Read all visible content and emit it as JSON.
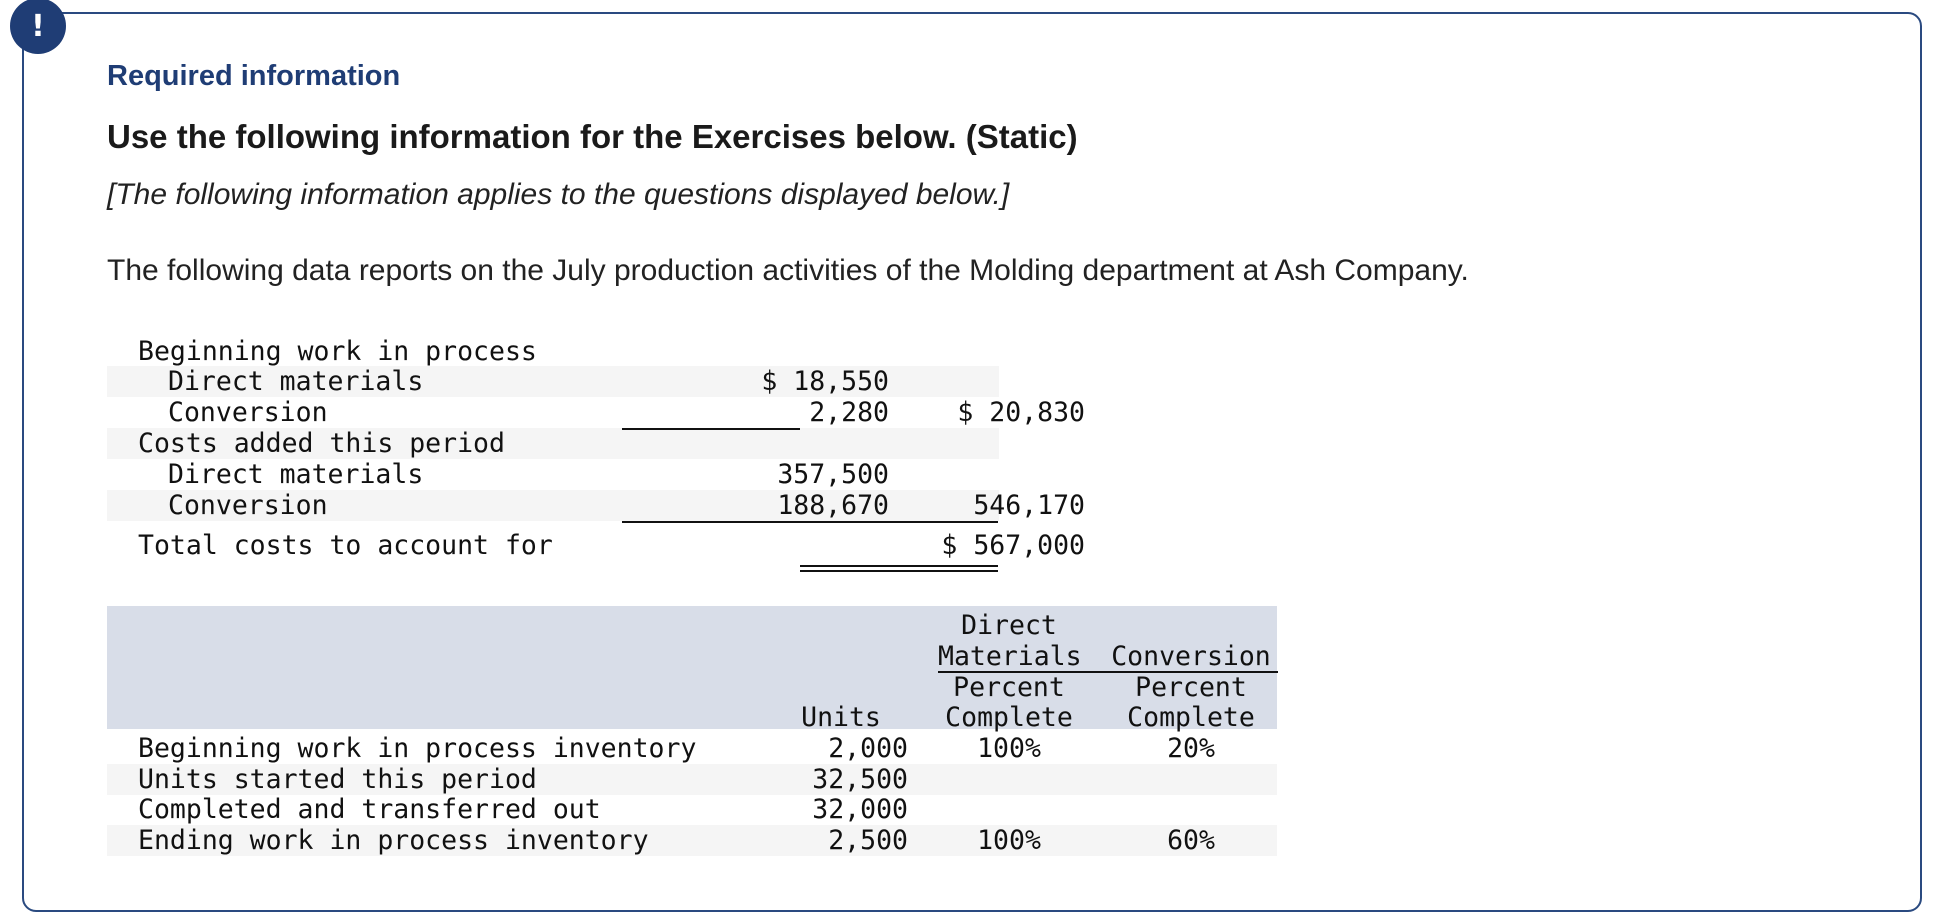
{
  "header": {
    "alert_glyph": "!",
    "required_label": "Required information",
    "title": "Use the following information for the Exercises below. (Static)",
    "applies_note": "[The following information applies to the questions displayed below.]",
    "intro": "The following data reports on the July production activities of the Molding department at Ash Company."
  },
  "costs": {
    "beginning_label": "Beginning work in process",
    "beg_dm_label": "Direct materials",
    "beg_dm_value": "$ 18,550",
    "beg_conv_label": "Conversion",
    "beg_conv_value": "2,280",
    "beg_total": "$ 20,830",
    "added_label": "Costs added this period",
    "add_dm_label": "Direct materials",
    "add_dm_value": "357,500",
    "add_conv_label": "Conversion",
    "add_conv_value": "188,670",
    "added_total": "546,170",
    "total_label": "Total costs to account for",
    "total_value": "$ 567,000"
  },
  "units_table": {
    "header": {
      "dm_top": "Direct",
      "dm_mid": "Materials",
      "conv_mid": "Conversion",
      "units": "Units",
      "dm_pct1": "Percent",
      "dm_pct2": "Complete",
      "conv_pct1": "Percent",
      "conv_pct2": "Complete"
    },
    "rows": [
      {
        "label": "Beginning work in process inventory",
        "units": "2,000",
        "dm": "100%",
        "conv": "20%"
      },
      {
        "label": "Units started this period",
        "units": "32,500",
        "dm": "",
        "conv": ""
      },
      {
        "label": "Completed and transferred out",
        "units": "32,000",
        "dm": "",
        "conv": ""
      },
      {
        "label": "Ending work in process inventory",
        "units": "2,500",
        "dm": "100%",
        "conv": "60%"
      }
    ]
  }
}
